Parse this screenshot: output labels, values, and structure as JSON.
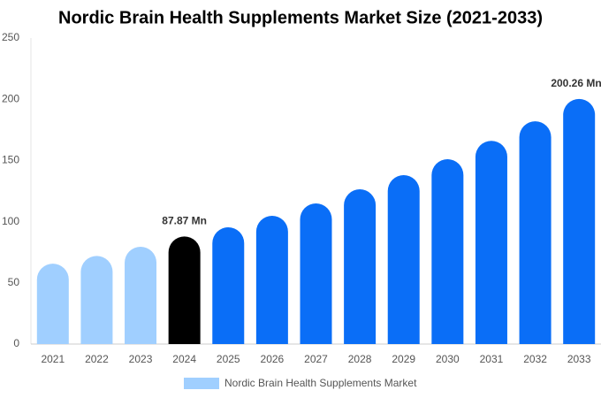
{
  "chart_data": {
    "type": "bar",
    "title": "Nordic Brain Health Supplements Market Size (2021-2033)",
    "categories": [
      "2021",
      "2022",
      "2023",
      "2024",
      "2025",
      "2026",
      "2027",
      "2028",
      "2029",
      "2030",
      "2031",
      "2032",
      "2033"
    ],
    "series": [
      {
        "name": "Nordic Brain Health Supplements Market",
        "color": "#a0cfff",
        "values": [
          65.7,
          72,
          79.5,
          87.87,
          95.4,
          104.8,
          114.9,
          126.4,
          138,
          151,
          166,
          182,
          200.26
        ],
        "colors": [
          "#a0cfff",
          "#a0cfff",
          "#a0cfff",
          "#000000",
          "#0a6ef7",
          "#0a6ef7",
          "#0a6ef7",
          "#0a6ef7",
          "#0a6ef7",
          "#0a6ef7",
          "#0a6ef7",
          "#0a6ef7",
          "#0a6ef7"
        ],
        "value_labels": [
          null,
          null,
          null,
          "87.87 Mn",
          null,
          null,
          null,
          null,
          null,
          null,
          null,
          null,
          "200.26 Mn"
        ]
      }
    ],
    "ylim": [
      0,
      250
    ],
    "yticks": [
      0,
      50,
      100,
      150,
      200,
      250
    ],
    "grid": false
  }
}
